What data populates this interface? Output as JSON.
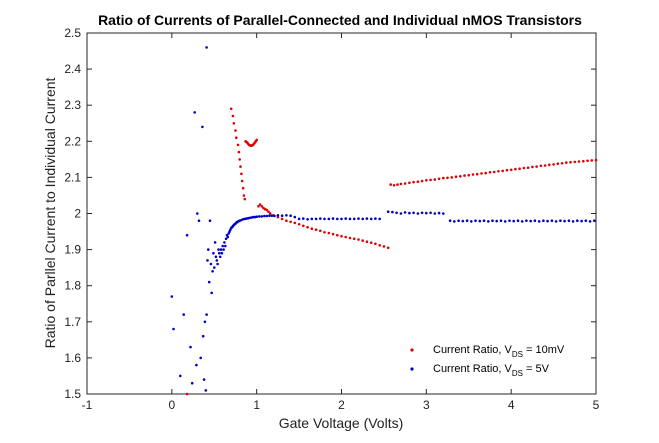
{
  "chart_data": {
    "type": "scatter",
    "title": "Ratio of Currents of Parallel-Connected and Individual nMOS Transistors",
    "xlabel": "Gate Voltage (Volts)",
    "ylabel": "Ratio of Parllel Current to Individual Current",
    "xlim": [
      -1,
      5
    ],
    "ylim": [
      1.5,
      2.5
    ],
    "xticks": [
      -1,
      0,
      1,
      2,
      3,
      4,
      5
    ],
    "yticks": [
      1.5,
      1.6,
      1.7,
      1.8,
      1.9,
      2,
      2.1,
      2.2,
      2.3,
      2.4,
      2.5
    ],
    "grid": false,
    "legend_position": "bottom-right",
    "series": [
      {
        "name_parts": [
          "Current Ratio, V",
          "DS",
          " = 10mV"
        ],
        "color": "#e00000",
        "marker": "dot",
        "points": [
          [
            0.18,
            1.5
          ],
          [
            0.7,
            2.29
          ],
          [
            0.72,
            2.27
          ],
          [
            0.73,
            2.25
          ],
          [
            0.75,
            2.23
          ],
          [
            0.76,
            2.21
          ],
          [
            0.78,
            2.19
          ],
          [
            0.79,
            2.17
          ],
          [
            0.8,
            2.15
          ],
          [
            0.81,
            2.13
          ],
          [
            0.82,
            2.11
          ],
          [
            0.83,
            2.09
          ],
          [
            0.84,
            2.07
          ],
          [
            0.85,
            2.05
          ],
          [
            0.86,
            2.04
          ],
          [
            0.87,
            2.2
          ],
          [
            0.88,
            2.198
          ],
          [
            0.89,
            2.196
          ],
          [
            0.9,
            2.193
          ],
          [
            0.91,
            2.19
          ],
          [
            0.92,
            2.189
          ],
          [
            0.93,
            2.188
          ],
          [
            0.94,
            2.188
          ],
          [
            0.95,
            2.189
          ],
          [
            0.96,
            2.191
          ],
          [
            0.97,
            2.194
          ],
          [
            0.98,
            2.197
          ],
          [
            0.99,
            2.2
          ],
          [
            1.0,
            2.204
          ],
          [
            1.02,
            2.02
          ],
          [
            1.04,
            2.025
          ],
          [
            1.06,
            2.02
          ],
          [
            1.08,
            2.015
          ],
          [
            1.1,
            2.012
          ],
          [
            1.12,
            2.01
          ],
          [
            1.14,
            2.005
          ],
          [
            1.16,
            2.0
          ],
          [
            1.2,
            1.995
          ],
          [
            1.25,
            1.99
          ],
          [
            1.3,
            1.985
          ],
          [
            1.35,
            1.98
          ],
          [
            1.4,
            1.977
          ],
          [
            1.45,
            1.974
          ],
          [
            1.5,
            1.97
          ],
          [
            1.55,
            1.966
          ],
          [
            1.6,
            1.962
          ],
          [
            1.65,
            1.958
          ],
          [
            1.7,
            1.955
          ],
          [
            1.75,
            1.952
          ],
          [
            1.8,
            1.948
          ],
          [
            1.85,
            1.946
          ],
          [
            1.9,
            1.943
          ],
          [
            1.95,
            1.94
          ],
          [
            2.0,
            1.937
          ],
          [
            2.05,
            1.935
          ],
          [
            2.1,
            1.932
          ],
          [
            2.15,
            1.93
          ],
          [
            2.2,
            1.928
          ],
          [
            2.25,
            1.925
          ],
          [
            2.3,
            1.922
          ],
          [
            2.35,
            1.919
          ],
          [
            2.4,
            1.916
          ],
          [
            2.45,
            1.912
          ],
          [
            2.5,
            1.909
          ],
          [
            2.55,
            1.905
          ],
          [
            2.58,
            2.08
          ],
          [
            2.62,
            2.078
          ],
          [
            2.66,
            2.08
          ],
          [
            2.7,
            2.082
          ],
          [
            2.75,
            2.083
          ],
          [
            2.8,
            2.085
          ],
          [
            2.85,
            2.087
          ],
          [
            2.9,
            2.088
          ],
          [
            2.95,
            2.09
          ],
          [
            3.0,
            2.092
          ],
          [
            3.05,
            2.093
          ],
          [
            3.1,
            2.094
          ],
          [
            3.15,
            2.096
          ],
          [
            3.2,
            2.098
          ],
          [
            3.25,
            2.099
          ],
          [
            3.3,
            2.1
          ],
          [
            3.35,
            2.102
          ],
          [
            3.4,
            2.103
          ],
          [
            3.45,
            2.105
          ],
          [
            3.5,
            2.106
          ],
          [
            3.55,
            2.108
          ],
          [
            3.6,
            2.109
          ],
          [
            3.65,
            2.111
          ],
          [
            3.7,
            2.112
          ],
          [
            3.75,
            2.114
          ],
          [
            3.8,
            2.115
          ],
          [
            3.85,
            2.117
          ],
          [
            3.9,
            2.118
          ],
          [
            3.95,
            2.12
          ],
          [
            4.0,
            2.121
          ],
          [
            4.05,
            2.123
          ],
          [
            4.1,
            2.124
          ],
          [
            4.15,
            2.126
          ],
          [
            4.2,
            2.127
          ],
          [
            4.25,
            2.129
          ],
          [
            4.3,
            2.13
          ],
          [
            4.35,
            2.132
          ],
          [
            4.4,
            2.133
          ],
          [
            4.45,
            2.135
          ],
          [
            4.5,
            2.136
          ],
          [
            4.55,
            2.138
          ],
          [
            4.6,
            2.139
          ],
          [
            4.65,
            2.141
          ],
          [
            4.7,
            2.142
          ],
          [
            4.75,
            2.143
          ],
          [
            4.8,
            2.144
          ],
          [
            4.85,
            2.145
          ],
          [
            4.9,
            2.146
          ],
          [
            4.95,
            2.147
          ],
          [
            5.0,
            2.148
          ]
        ]
      },
      {
        "name_parts": [
          "Current Ratio, V",
          "DS",
          " = 5V"
        ],
        "color": "#0000c8",
        "marker": "dot",
        "points": [
          [
            0.0,
            1.77
          ],
          [
            0.02,
            1.68
          ],
          [
            0.1,
            1.55
          ],
          [
            0.14,
            1.72
          ],
          [
            0.18,
            1.94
          ],
          [
            0.22,
            1.63
          ],
          [
            0.24,
            1.53
          ],
          [
            0.27,
            2.28
          ],
          [
            0.29,
            1.58
          ],
          [
            0.3,
            2.0
          ],
          [
            0.32,
            1.98
          ],
          [
            0.34,
            1.6
          ],
          [
            0.36,
            2.24
          ],
          [
            0.37,
            1.66
          ],
          [
            0.38,
            1.54
          ],
          [
            0.39,
            1.7
          ],
          [
            0.4,
            1.51
          ],
          [
            0.41,
            2.46
          ],
          [
            0.41,
            1.72
          ],
          [
            0.42,
            1.87
          ],
          [
            0.43,
            1.9
          ],
          [
            0.44,
            1.81
          ],
          [
            0.45,
            1.98
          ],
          [
            0.46,
            1.86
          ],
          [
            0.47,
            1.78
          ],
          [
            0.48,
            1.84
          ],
          [
            0.49,
            1.89
          ],
          [
            0.5,
            1.85
          ],
          [
            0.51,
            1.92
          ],
          [
            0.52,
            1.88
          ],
          [
            0.53,
            1.87
          ],
          [
            0.54,
            1.86
          ],
          [
            0.55,
            1.9
          ],
          [
            0.56,
            1.89
          ],
          [
            0.57,
            1.88
          ],
          [
            0.58,
            1.9
          ],
          [
            0.59,
            1.89
          ],
          [
            0.6,
            1.91
          ],
          [
            0.61,
            1.9
          ],
          [
            0.62,
            1.92
          ],
          [
            0.63,
            1.91
          ],
          [
            0.64,
            1.93
          ],
          [
            0.65,
            1.94
          ],
          [
            0.66,
            1.935
          ],
          [
            0.67,
            1.945
          ],
          [
            0.68,
            1.95
          ],
          [
            0.69,
            1.955
          ],
          [
            0.7,
            1.96
          ],
          [
            0.71,
            1.962
          ],
          [
            0.72,
            1.965
          ],
          [
            0.73,
            1.968
          ],
          [
            0.74,
            1.97
          ],
          [
            0.75,
            1.972
          ],
          [
            0.76,
            1.975
          ],
          [
            0.77,
            1.976
          ],
          [
            0.78,
            1.978
          ],
          [
            0.79,
            1.979
          ],
          [
            0.8,
            1.98
          ],
          [
            0.82,
            1.982
          ],
          [
            0.84,
            1.984
          ],
          [
            0.86,
            1.985
          ],
          [
            0.88,
            1.986
          ],
          [
            0.9,
            1.987
          ],
          [
            0.92,
            1.988
          ],
          [
            0.94,
            1.989
          ],
          [
            0.96,
            1.99
          ],
          [
            0.98,
            1.99
          ],
          [
            1.0,
            1.991
          ],
          [
            1.03,
            1.992
          ],
          [
            1.06,
            1.992
          ],
          [
            1.09,
            1.993
          ],
          [
            1.12,
            1.993
          ],
          [
            1.15,
            1.994
          ],
          [
            1.18,
            1.994
          ],
          [
            1.21,
            1.993
          ],
          [
            1.25,
            1.995
          ],
          [
            1.3,
            1.994
          ],
          [
            1.35,
            1.995
          ],
          [
            1.4,
            1.994
          ],
          [
            1.45,
            1.99
          ],
          [
            1.5,
            1.985
          ],
          [
            1.55,
            1.986
          ],
          [
            1.6,
            1.984
          ],
          [
            1.65,
            1.985
          ],
          [
            1.7,
            1.985
          ],
          [
            1.75,
            1.986
          ],
          [
            1.8,
            1.985
          ],
          [
            1.85,
            1.985
          ],
          [
            1.9,
            1.986
          ],
          [
            1.95,
            1.985
          ],
          [
            2.0,
            1.985
          ],
          [
            2.05,
            1.986
          ],
          [
            2.1,
            1.985
          ],
          [
            2.15,
            1.985
          ],
          [
            2.2,
            1.986
          ],
          [
            2.25,
            1.985
          ],
          [
            2.3,
            1.986
          ],
          [
            2.35,
            1.985
          ],
          [
            2.4,
            1.986
          ],
          [
            2.45,
            1.985
          ],
          [
            2.55,
            2.005
          ],
          [
            2.6,
            2.004
          ],
          [
            2.65,
            2.002
          ],
          [
            2.7,
            2.0
          ],
          [
            2.75,
            2.003
          ],
          [
            2.8,
            2.001
          ],
          [
            2.85,
            2.002
          ],
          [
            2.9,
            2.0
          ],
          [
            2.95,
            2.002
          ],
          [
            3.0,
            2.001
          ],
          [
            3.05,
            2.002
          ],
          [
            3.1,
            2.0
          ],
          [
            3.15,
            2.001
          ],
          [
            3.2,
            2.0
          ],
          [
            3.28,
            1.98
          ],
          [
            3.33,
            1.978
          ],
          [
            3.38,
            1.98
          ],
          [
            3.43,
            1.979
          ],
          [
            3.48,
            1.98
          ],
          [
            3.53,
            1.978
          ],
          [
            3.58,
            1.98
          ],
          [
            3.63,
            1.979
          ],
          [
            3.68,
            1.98
          ],
          [
            3.73,
            1.978
          ],
          [
            3.78,
            1.98
          ],
          [
            3.83,
            1.979
          ],
          [
            3.88,
            1.98
          ],
          [
            3.93,
            1.978
          ],
          [
            3.98,
            1.98
          ],
          [
            4.03,
            1.979
          ],
          [
            4.08,
            1.98
          ],
          [
            4.13,
            1.978
          ],
          [
            4.18,
            1.98
          ],
          [
            4.23,
            1.979
          ],
          [
            4.28,
            1.98
          ],
          [
            4.33,
            1.978
          ],
          [
            4.38,
            1.98
          ],
          [
            4.43,
            1.979
          ],
          [
            4.48,
            1.98
          ],
          [
            4.53,
            1.978
          ],
          [
            4.58,
            1.98
          ],
          [
            4.63,
            1.979
          ],
          [
            4.68,
            1.98
          ],
          [
            4.73,
            1.978
          ],
          [
            4.78,
            1.98
          ],
          [
            4.83,
            1.979
          ],
          [
            4.88,
            1.98
          ],
          [
            4.93,
            1.978
          ],
          [
            4.98,
            1.98
          ]
        ]
      }
    ]
  }
}
